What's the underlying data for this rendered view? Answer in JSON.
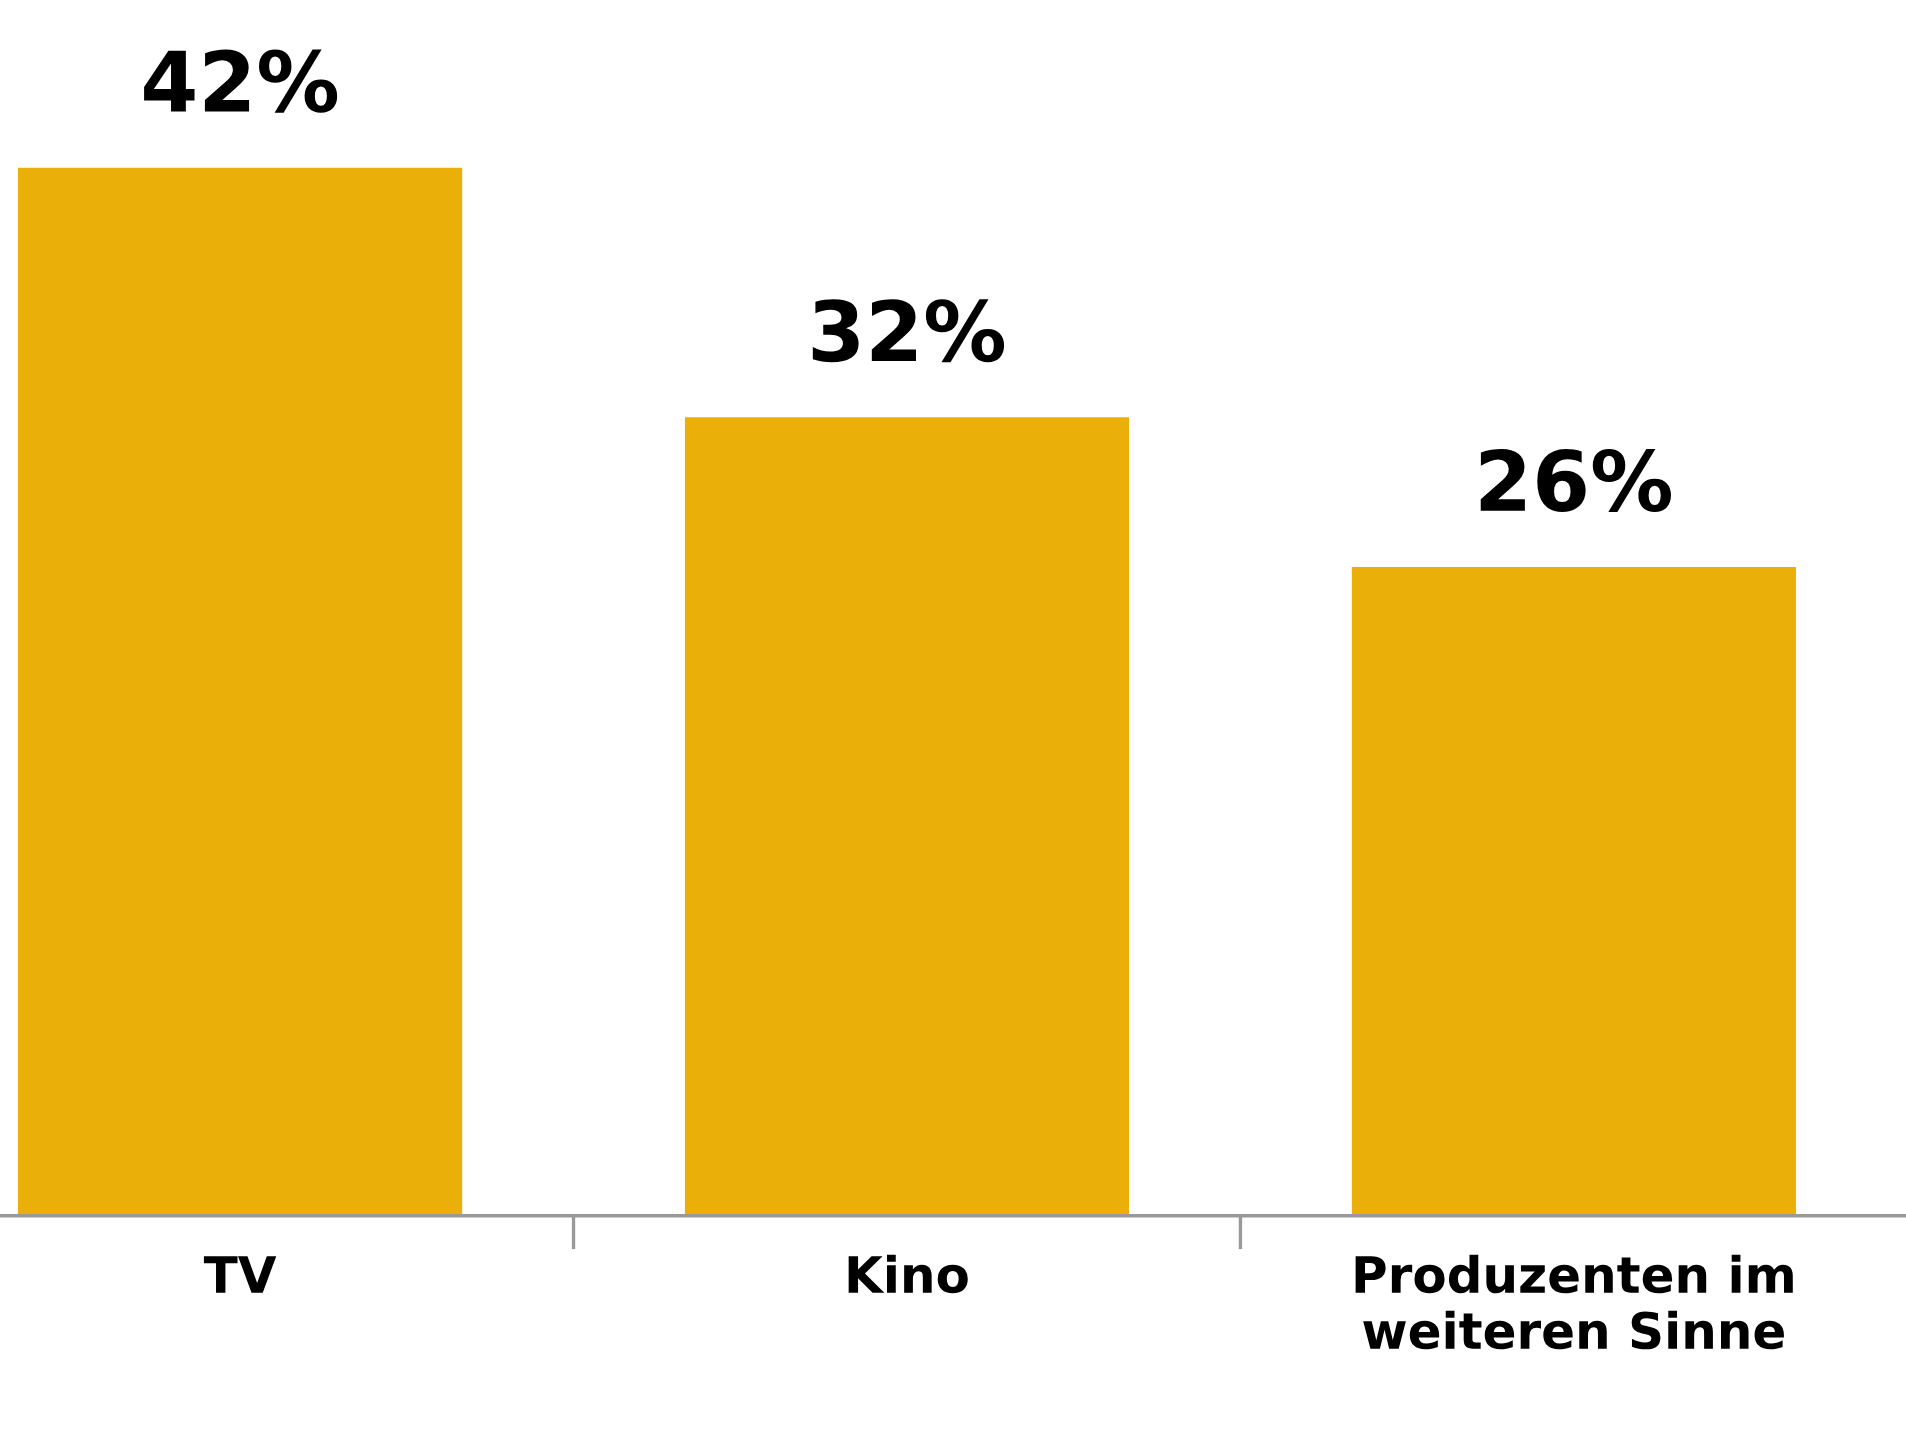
{
  "chart_data": {
    "type": "bar",
    "categories": [
      "TV",
      "Kino",
      "Produzenten im\nweiteren Sinne"
    ],
    "values": [
      42,
      32,
      26
    ],
    "value_labels": [
      "42%",
      "32%",
      "26%"
    ],
    "color": "#eaaf09",
    "grid": false,
    "legend": false
  }
}
